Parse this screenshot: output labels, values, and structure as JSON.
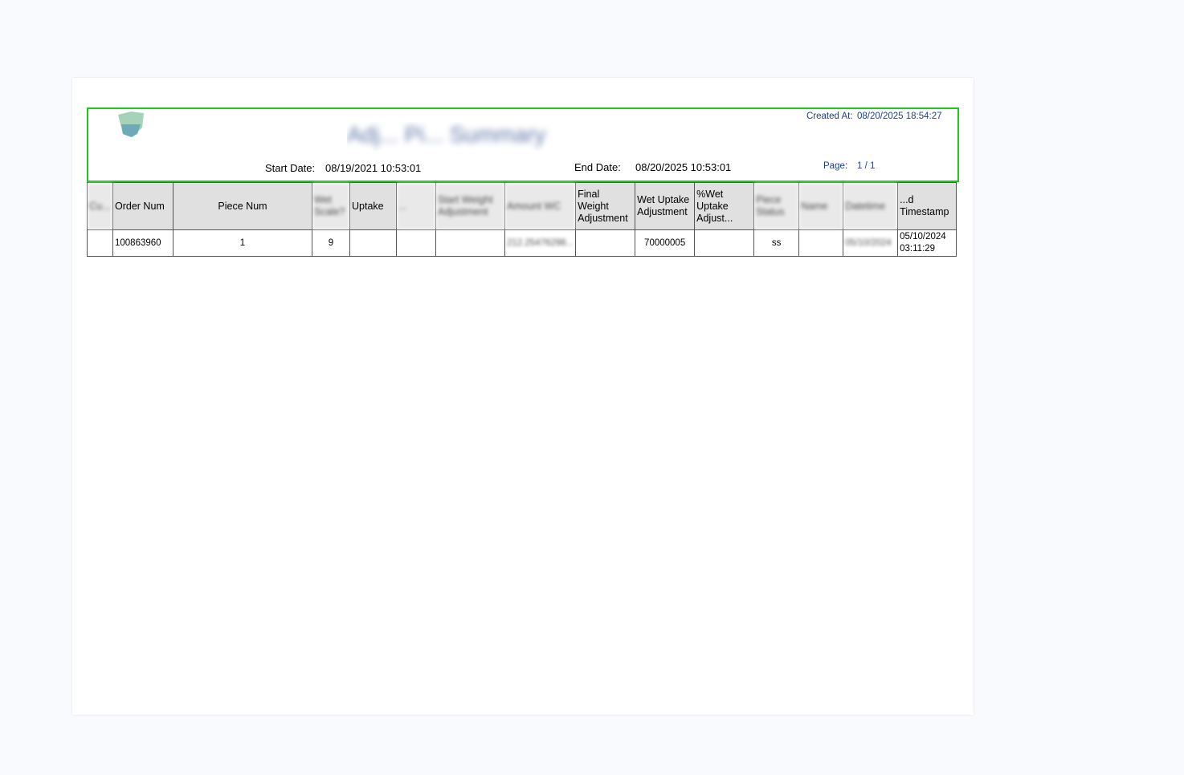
{
  "report": {
    "title": "Adj... Pi... Summary",
    "created_at_label": "Created At:",
    "created_at": "08/20/2025 18:54:27",
    "start_date_label": "Start Date:",
    "start_date": "08/19/2021 10:53:01",
    "end_date_label": "End Date:",
    "end_date": "08/20/2025 10:53:01",
    "page_label": "Page:",
    "page_value": "1 / 1",
    "accent_color": "#1ec81e",
    "title_color": "#1f3f86"
  },
  "table": {
    "columns": [
      "Cu...",
      "Order Num",
      "Piece Num",
      "Wet Scale?",
      "Uptake",
      "...",
      "Start Weight Adjustment",
      "Amount WC",
      "Final Weight Adjustment",
      "Wet Uptake Adjustment",
      "%Wet Uptake Adjust...",
      "Piece Status",
      "Name",
      "Datetime",
      "...d Timestamp"
    ],
    "rows": [
      [
        "",
        "100863960",
        "1",
        "9",
        "",
        "",
        "",
        "212.25476298...",
        "",
        "70000005",
        "",
        "ss",
        "",
        "05/10/2024",
        "05/10/2024 03:11:29"
      ]
    ]
  }
}
